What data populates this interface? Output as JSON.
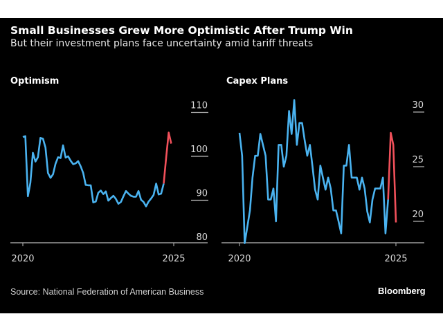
{
  "title": "Small Businesses Grew More Optimistic After Trump Win",
  "subtitle": "But their investment plans face uncertainty amid tariff threats",
  "source": "Source: National Federation of American Business",
  "logo": "Bloomberg",
  "colors": {
    "background": "#000000",
    "series": "#4ab3f0",
    "highlight": "#f0505a"
  },
  "chart_data": [
    {
      "type": "line",
      "title": "Optimism",
      "x_start": "2020-01",
      "x_step": "month",
      "x_ticks": [
        "2020",
        "2025"
      ],
      "ylim": [
        80,
        112
      ],
      "y_ticks": [
        80,
        90,
        100,
        110
      ],
      "y_axis_position": "right",
      "highlight_from_index": 56,
      "values": [
        104.4,
        104.6,
        90.9,
        94,
        100.8,
        98.8,
        99.8,
        104.2,
        104,
        102,
        96.2,
        95.1,
        95.9,
        98.3,
        99.8,
        99.6,
        102.5,
        99.7,
        100,
        99,
        98.2,
        98.4,
        98.9,
        97.7,
        96.2,
        93.5,
        93.4,
        93.4,
        89.5,
        89.7,
        91.7,
        92.2,
        91.4,
        92,
        89.9,
        90.5,
        91,
        90.3,
        89.2,
        89.6,
        90.9,
        92.1,
        91.5,
        91,
        90.8,
        90.8,
        92.1,
        90.1,
        89.6,
        88.6,
        89.7,
        90.4,
        91.2,
        93.8,
        91.3,
        91.5,
        93.8,
        99.8,
        105.4,
        102.9
      ]
    },
    {
      "type": "line",
      "title": "Capex Plans",
      "x_start": "2020-01",
      "x_step": "month",
      "x_ticks": [
        "2020",
        "2025"
      ],
      "ylim": [
        18,
        31.5
      ],
      "y_ticks": [
        20,
        25,
        30
      ],
      "y_axis_position": "right",
      "highlight_from_index": 57,
      "values": [
        28.1,
        26,
        18,
        19.5,
        21,
        24,
        26,
        26,
        28,
        27,
        26,
        22,
        22,
        23,
        20,
        27,
        27,
        25,
        26,
        30.1,
        28,
        31.1,
        27,
        29,
        29,
        27.4,
        26,
        27,
        25,
        22.9,
        22,
        25.1,
        24,
        22.9,
        24,
        23,
        21,
        21,
        20,
        18.9,
        25.1,
        25.1,
        27,
        24,
        24,
        24,
        22.9,
        24,
        23,
        20.9,
        19.9,
        22,
        23,
        23,
        23,
        24,
        18.9,
        22,
        28.1,
        27,
        19.9
      ]
    }
  ]
}
